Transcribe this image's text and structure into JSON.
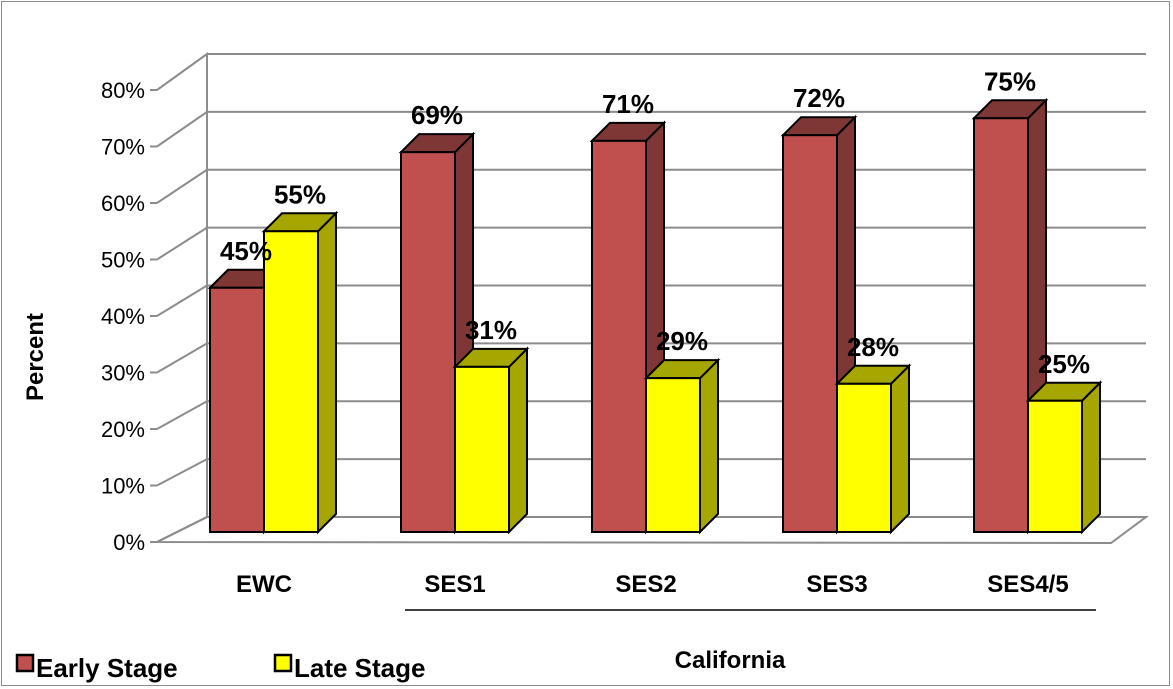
{
  "chart_data": {
    "type": "bar",
    "style": "3d-clustered-column",
    "categories": [
      "EWC",
      "SES1",
      "SES2",
      "SES3",
      "SES4/5"
    ],
    "category_group_label": "California",
    "category_group_members": [
      "SES1",
      "SES2",
      "SES3",
      "SES4/5"
    ],
    "series": [
      {
        "name": "Early Stage",
        "values": [
          45,
          69,
          71,
          72,
          75
        ],
        "labels": [
          "45%",
          "69%",
          "71%",
          "72%",
          "75%"
        ],
        "color": "#c0504d",
        "side_color": "#7f3735"
      },
      {
        "name": "Late Stage",
        "values": [
          55,
          31,
          29,
          28,
          25
        ],
        "labels": [
          "55%",
          "31%",
          "29%",
          "28%",
          "25%"
        ],
        "color": "#ffff00",
        "side_color": "#a6a600"
      }
    ],
    "ylabel": "Percent",
    "ylim": [
      0,
      80
    ],
    "yticks": [
      0,
      10,
      20,
      30,
      40,
      50,
      60,
      70,
      80
    ],
    "ytick_labels": [
      "0%",
      "10%",
      "20%",
      "30%",
      "40%",
      "50%",
      "60%",
      "70%",
      "80%"
    ],
    "grid": true,
    "legend": "bottom-left"
  }
}
